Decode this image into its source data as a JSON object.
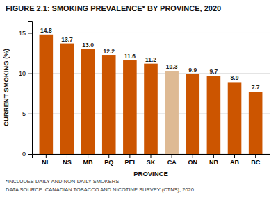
{
  "chart_data": {
    "type": "bar",
    "title": "FIGURE 2.1: SMOKING PREVALENCE* BY PROVINCE, 2020",
    "categories": [
      "NL",
      "NS",
      "MB",
      "PQ",
      "PEI",
      "SK",
      "CA",
      "ON",
      "NB",
      "AB",
      "BC"
    ],
    "values": [
      14.8,
      13.7,
      13.0,
      12.2,
      11.6,
      11.2,
      10.3,
      9.9,
      9.7,
      8.9,
      7.7
    ],
    "value_labels": [
      "14.8",
      "13.7",
      "13.0",
      "12.2",
      "11.6",
      "11.2",
      "10.3",
      "9.9",
      "9.7",
      "8.9",
      "7.7"
    ],
    "colors": [
      "#CC5500",
      "#CC5500",
      "#CC5500",
      "#CC5500",
      "#CC5500",
      "#CC5500",
      "#DEBA94",
      "#CC5500",
      "#CC5500",
      "#CC5500",
      "#CC5500"
    ],
    "xlabel": "PROVINCE",
    "ylabel": "CURRENT SMOKING (%)",
    "ylim": [
      0,
      16.5
    ],
    "yticks": [
      0,
      5,
      10,
      15
    ],
    "grid": true,
    "data_labels": true,
    "annotations": [
      "*INCLUDES DAILY AND NON-DAILY SMOKERS",
      "DATA SOURCE: CANADIAN TOBACCO AND NICOTINE SURVEY (CTNS), 2020"
    ]
  }
}
